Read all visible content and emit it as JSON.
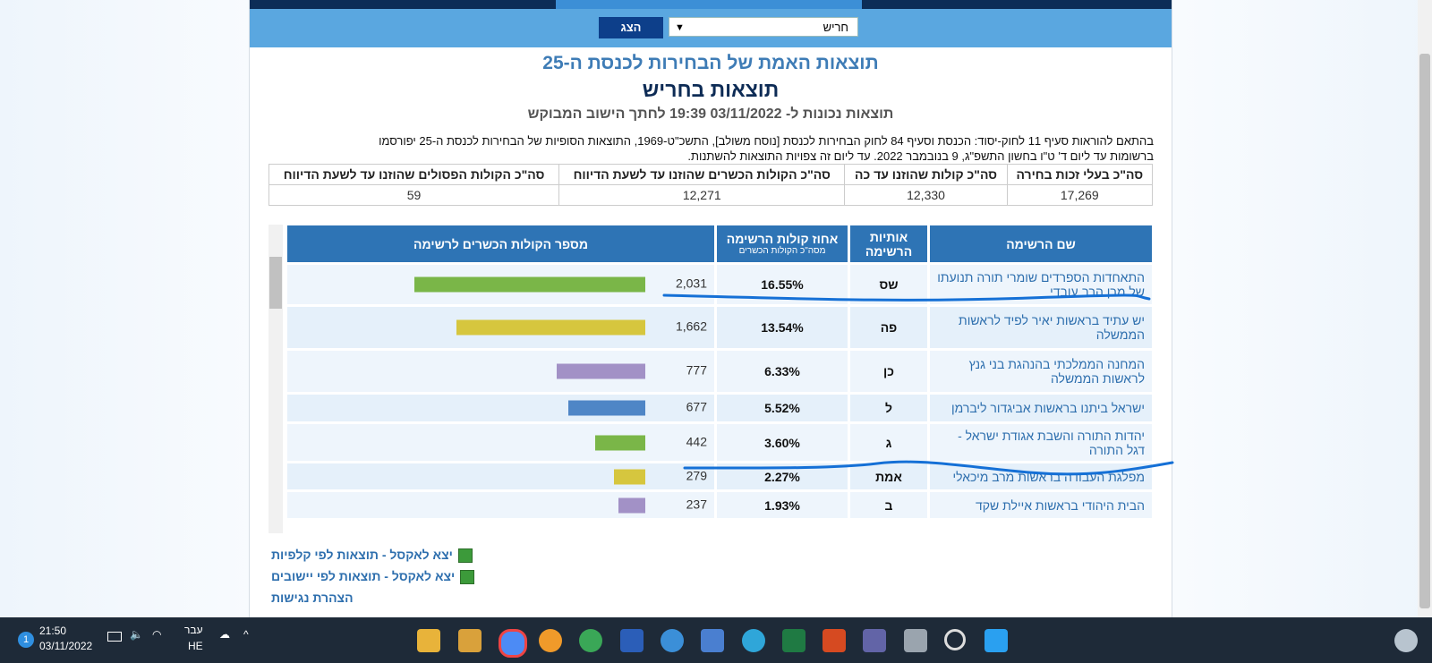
{
  "nav": {
    "city": "חריש",
    "show_button": "הצג"
  },
  "header": {
    "title": "תוצאות האמת של הבחירות לכנסת ה-25",
    "subtitle": "תוצאות בחריש",
    "timestamp": "תוצאות נכונות ל- 03/11/2022 19:39  לחתך הישוב המבוקש"
  },
  "notice": [
    "בהתאם להוראות סעיף 11 לחוק-יסוד: הכנסת וסעיף 84 לחוק הבחירות לכנסת [נוסח משולב], התשכ\"ט-1969, התוצאות הסופיות של הבחירות לכנסת ה-25 יפורסמו",
    "ברשומות עד ליום ד' ט\"ו בחשון התשפ\"ג, 9 בנובמבר 2022. עד ליום זה צפויות התוצאות להשתנות."
  ],
  "summary": {
    "columns": [
      "סה\"כ בעלי זכות בחירה",
      "סה\"כ קולות שהוזנו עד כה",
      "סה\"כ הקולות הכשרים שהוזנו עד לשעת הדיווח",
      "סה\"כ הקולות הפסולים שהוזנו עד לשעת הדיווח"
    ],
    "values": [
      "17,269",
      "12,330",
      "12,271",
      "59"
    ]
  },
  "results": {
    "columns": {
      "name": "שם הרשימה",
      "letters": "אותיות הרשימה",
      "percent": "אחוז קולות הרשימה",
      "percent_note": "מסה\"כ הקולות הכשרים",
      "votes": "מספר הקולות הכשרים לרשימה"
    },
    "rows": [
      {
        "name": "התאחדות הספרדים שומרי תורה תנועתו של מרן הרב עובדי",
        "letters": "שס",
        "percent": "16.55%",
        "votes": 2031,
        "votes_label": "2,031",
        "color": "#7ab648"
      },
      {
        "name": "יש עתיד בראשות יאיר לפיד לראשות הממשלה",
        "letters": "פה",
        "percent": "13.54%",
        "votes": 1662,
        "votes_label": "1,662",
        "color": "#d6c63e"
      },
      {
        "name": "המחנה הממלכתי בהנהגת בני גנץ לראשות הממשלה",
        "letters": "כן",
        "percent": "6.33%",
        "votes": 777,
        "color": "#a291c6"
      },
      {
        "name": "ישראל ביתנו בראשות אביגדור ליברמן",
        "letters": "ל",
        "percent": "5.52%",
        "votes": 677,
        "color": "#4f86c6"
      },
      {
        "name": "יהדות התורה והשבת אגודת ישראל - דגל התורה",
        "letters": "ג",
        "percent": "3.60%",
        "votes": 442,
        "color": "#7ab648"
      },
      {
        "name": "מפלגת העבודה בראשות מרב מיכאלי",
        "letters": "אמת",
        "percent": "2.27%",
        "votes": 279,
        "color": "#d6c63e"
      },
      {
        "name": "הבית היהודי בראשות איילת שקד",
        "letters": "ב",
        "percent": "1.93%",
        "votes": 237,
        "color": "#a291c6"
      }
    ]
  },
  "links": [
    "יצא לאקסל - תוצאות לפי קלפיות",
    "יצא לאקסל - תוצאות לפי יישובים",
    "הצהרת נגישות"
  ],
  "taskbar": {
    "time": "21:50",
    "date": "03/11/2022",
    "status": "עבר",
    "language": "HE",
    "notification_count": 1
  }
}
